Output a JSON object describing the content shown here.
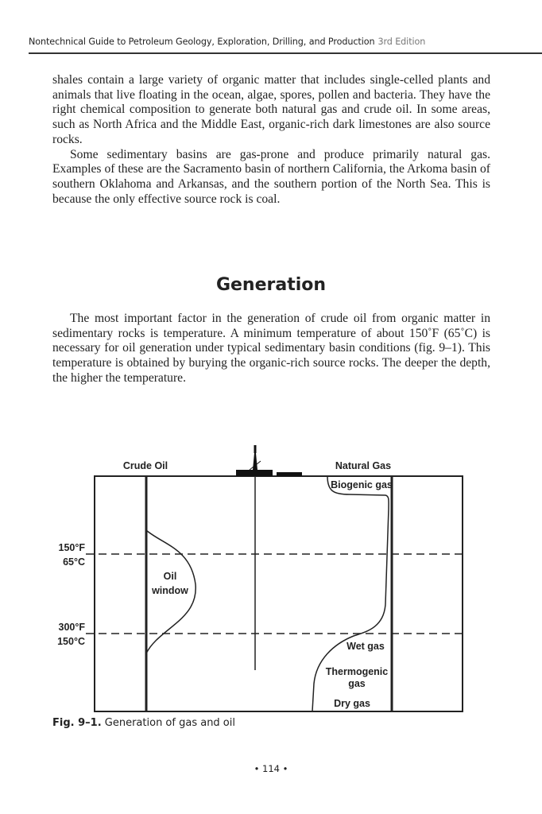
{
  "header": {
    "title": "Nontechnical Guide to Petroleum Geology, Exploration, Drilling, and Production",
    "edition": "3rd Edition"
  },
  "paragraphs_top": [
    "shales contain a large variety of organic matter that includes single-celled plants and animals that live floating in the ocean, algae, spores, pollen and bacteria. They have the right chemical composition to generate both natural gas and crude oil. In some areas, such as North Africa and the Middle East, organic-rich dark limestones are also source rocks.",
    "Some sedimentary basins are gas-prone and produce primarily natural gas. Examples of these are the Sacramento basin of northern California, the Arkoma basin of southern Oklahoma and Arkansas, and the southern portion of the North Sea. This is because the only effective source rock is coal."
  ],
  "section_heading": "Generation",
  "paragraphs_section": [
    "The most important factor in the generation of crude oil from organic matter in sedimentary rocks is temperature. A minimum temperature of about 150˚F (65˚C) is necessary for oil generation under typical sedimentary basin conditions (fig. 9–1). This temperature is obtained by burying the organic-rich source rocks. The deeper the depth, the higher the temperature."
  ],
  "figure": {
    "labels": {
      "crude_oil": "Crude Oil",
      "natural_gas": "Natural Gas",
      "biogenic": "Biogenic gas",
      "oil_window_1": "Oil",
      "oil_window_2": "window",
      "wet_gas": "Wet gas",
      "thermo_1": "Thermogenic",
      "thermo_2": "gas",
      "dry_gas": "Dry gas"
    },
    "temps": {
      "t1f": "150°F",
      "t1c": "65°C",
      "t2f": "300°F",
      "t2c": "150°C"
    },
    "caption_label": "Fig. 9–1.",
    "caption_text": "Generation of gas and oil"
  },
  "page_number": "• 114 •"
}
